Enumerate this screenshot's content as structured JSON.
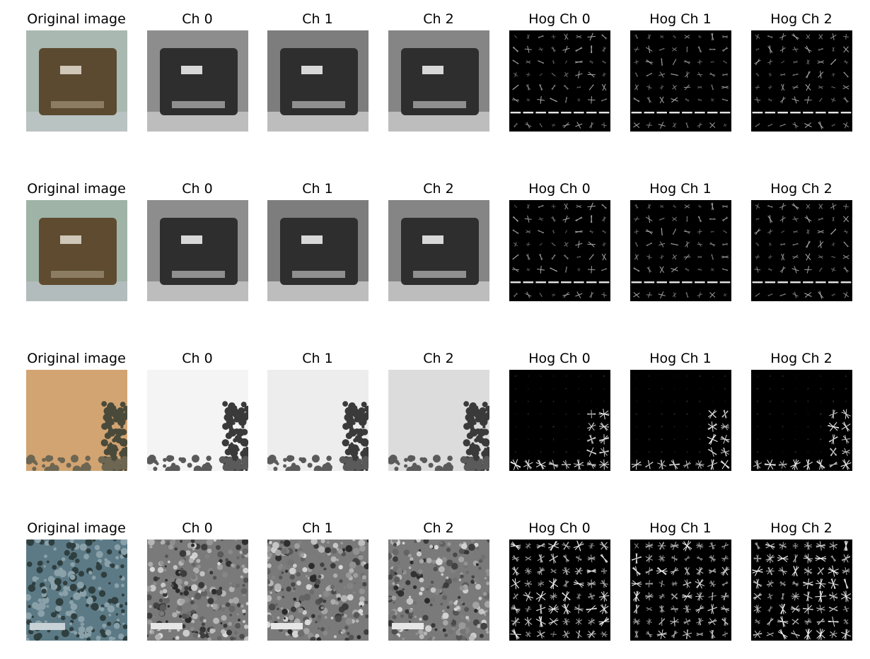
{
  "figure": {
    "column_titles": [
      "Original image",
      "Ch 0",
      "Ch 1",
      "Ch 2",
      "Hog Ch 0",
      "Hog Ch 1",
      "Hog Ch 2"
    ],
    "rows": [
      {
        "original_colors": {
          "sky": "#a9b8b0",
          "body": "#5b4a30",
          "road": "#b9c3c2"
        },
        "channel_style": "car",
        "hog_density": "sparse-car",
        "titles": [
          "Original image",
          "Ch 0",
          "Ch 1",
          "Ch 2",
          "Hog Ch 0",
          "Hog Ch 1",
          "Hog Ch 2"
        ]
      },
      {
        "original_colors": {
          "sky": "#9fb3a6",
          "body": "#5e4b30",
          "road": "#b3bcbc"
        },
        "channel_style": "car",
        "hog_density": "sparse-car",
        "titles": [
          "Original image",
          "Ch 0",
          "Ch 1",
          "Ch 2",
          "Hog Ch 0",
          "Hog Ch 1",
          "Hog Ch 2"
        ]
      },
      {
        "original_colors": {
          "sky": "#d2a472",
          "body": "#4a4a3a",
          "road": "#6d6652"
        },
        "channel_style": "sky",
        "hog_density": "corner",
        "titles": [
          "Original image",
          "Ch 0",
          "Ch 1",
          "Ch 2",
          "Hog Ch 0",
          "Hog Ch 1",
          "Hog Ch 2"
        ]
      },
      {
        "original_colors": {
          "sky": "#5c7a86",
          "body": "#2f3f3f",
          "road": "#8aa1aa"
        },
        "channel_style": "foliage",
        "hog_density": "dense",
        "titles": [
          "Original image",
          "Ch 0",
          "Ch 1",
          "Ch 2",
          "Hog Ch 0",
          "Hog Ch 1",
          "Hog Ch 2"
        ]
      }
    ]
  }
}
